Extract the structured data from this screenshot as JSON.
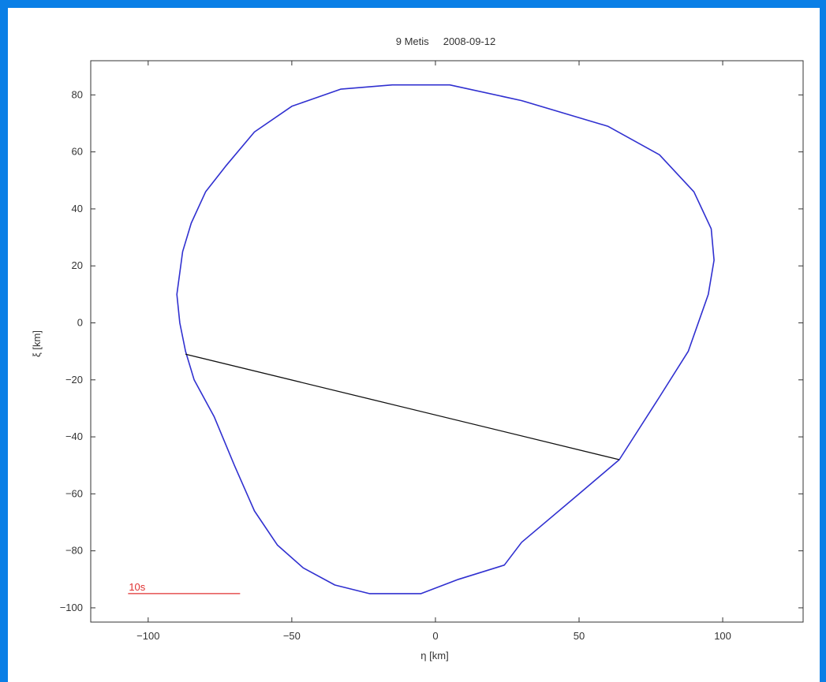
{
  "chart_data": {
    "type": "line",
    "title": "9 Metis     2008-09-12",
    "xlabel": "η [km]",
    "ylabel": "ξ [km]",
    "xlim": [
      -120,
      128
    ],
    "ylim": [
      -105,
      92
    ],
    "xticks": [
      -100,
      -50,
      0,
      50,
      100
    ],
    "yticks": [
      80,
      60,
      40,
      20,
      0,
      -20,
      -40,
      -60,
      -80,
      -100
    ],
    "xtick_labels": [
      "−100",
      "−50",
      "0",
      "50",
      "100"
    ],
    "ytick_labels": [
      "80",
      "60",
      "40",
      "20",
      "0",
      "−20",
      "−40",
      "−60",
      "−80",
      "−100"
    ],
    "grid": false,
    "colors": {
      "outline": "#3030d0",
      "chord": "#111111",
      "scale": "#e03030"
    },
    "series": [
      {
        "kind": "asteroid-outline",
        "x": [
          -90,
          -88,
          -85,
          -80,
          -73,
          -63,
          -50,
          -33,
          -15,
          5,
          30,
          60,
          78,
          90,
          96,
          97,
          95,
          88,
          78,
          64,
          50,
          30,
          24,
          8,
          -5,
          -23,
          -35,
          -46,
          -55,
          -63,
          -70,
          -77,
          -84,
          -87,
          -89,
          -90
        ],
        "y": [
          10,
          25,
          35,
          46,
          55,
          67,
          76,
          82,
          83.5,
          83.5,
          78,
          69,
          59,
          46,
          33,
          22,
          10,
          -10,
          -26,
          -48,
          -60,
          -77,
          -85,
          -90,
          -95,
          -95,
          -92,
          -86,
          -78,
          -66,
          -50,
          -33,
          -20,
          -10,
          0,
          10
        ]
      },
      {
        "kind": "chord",
        "x": [
          -87,
          64
        ],
        "y": [
          -11,
          -48
        ]
      }
    ],
    "scale_bar": {
      "label": "10s",
      "x": [
        -107,
        -68
      ],
      "y": -95
    }
  }
}
